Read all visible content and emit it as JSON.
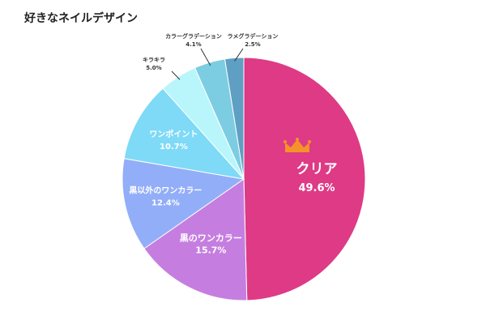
{
  "chart_data": {
    "type": "pie",
    "title": "好きなネイルデザイン",
    "slices": [
      {
        "label": "クリア",
        "value": 49.6,
        "display": "49.6%",
        "color": "#DE3A86",
        "highlight": true
      },
      {
        "label": "黒のワンカラー",
        "value": 15.7,
        "display": "15.7%",
        "color": "#C57EE0"
      },
      {
        "label": "黒以外のワンカラー",
        "value": 12.4,
        "display": "12.4%",
        "color": "#93AEF8"
      },
      {
        "label": "ワンポイント",
        "value": 10.7,
        "display": "10.7%",
        "color": "#7EDAF7"
      },
      {
        "label": "キラキラ",
        "value": 5.0,
        "display": "5.0%",
        "color": "#B8F6FB"
      },
      {
        "label": "カラーグラデーション",
        "value": 4.1,
        "display": "4.1%",
        "color": "#7CCDE2"
      },
      {
        "label": "ラメグラデーション",
        "value": 2.5,
        "display": "2.5%",
        "color": "#5F9FC3"
      }
    ],
    "crown_icon": "crown-icon",
    "crown_color": "#F5922A",
    "start": "12 o'clock",
    "direction": "clockwise",
    "legend": "none"
  }
}
